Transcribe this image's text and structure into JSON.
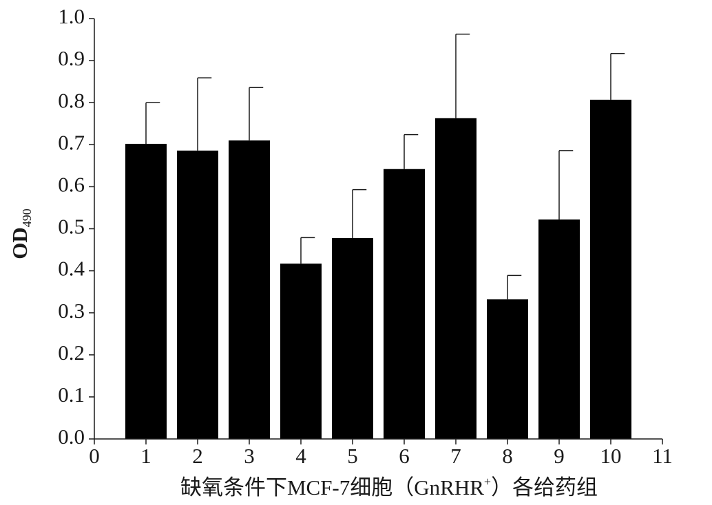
{
  "chart_data": {
    "type": "bar",
    "xlabel": {
      "before": "缺氧条件下MCF-7细胞（GnRHR",
      "sup": "+",
      "after": "）各给药组"
    },
    "ylabel": {
      "text": "OD",
      "subscript": "490"
    },
    "x": [
      1,
      2,
      3,
      4,
      5,
      6,
      7,
      8,
      9,
      10
    ],
    "values": [
      0.702,
      0.686,
      0.71,
      0.417,
      0.478,
      0.642,
      0.763,
      0.332,
      0.522,
      0.807
    ],
    "errors": [
      0.098,
      0.173,
      0.126,
      0.062,
      0.115,
      0.082,
      0.2,
      0.057,
      0.164,
      0.11
    ],
    "color": "#000000",
    "xlim": [
      0,
      11
    ],
    "xticks": [
      0,
      1,
      2,
      3,
      4,
      5,
      6,
      7,
      8,
      9,
      10,
      11
    ],
    "ylim": [
      0,
      1
    ],
    "yticks": [
      {
        "value": 0,
        "label": "0.0"
      },
      0.1,
      0.2,
      0.3,
      0.4,
      0.5,
      0.6,
      0.7,
      0.8,
      0.9,
      {
        "value": 1,
        "label": "1.0"
      }
    ]
  }
}
